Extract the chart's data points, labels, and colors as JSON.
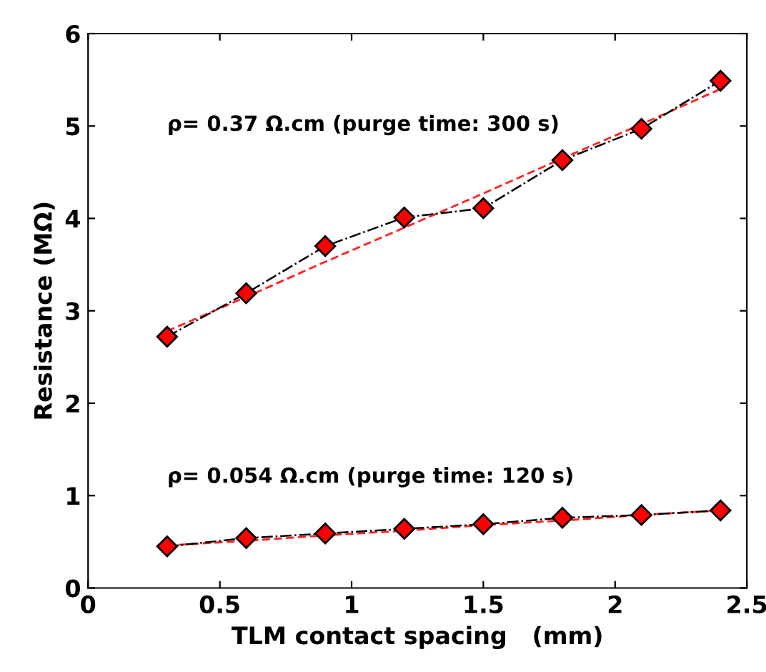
{
  "chart_data": {
    "type": "line",
    "xlabel": "TLM contact spacing   (mm)",
    "ylabel": "Resistance (MΩ)",
    "x": [
      0.3,
      0.6,
      0.9,
      1.2,
      1.5,
      1.8,
      2.1,
      2.4
    ],
    "series": [
      {
        "color": "#ff0000",
        "marker": "diamond",
        "line_style": "dashed",
        "values": [
          2.72,
          3.19,
          3.7,
          4.01,
          4.11,
          4.63,
          4.97,
          5.49
        ]
      },
      {
        "color": "#ff0000",
        "marker": "diamond",
        "line_style": "dashed",
        "values": [
          0.45,
          0.54,
          0.59,
          0.64,
          0.69,
          0.76,
          0.79,
          0.84
        ]
      },
      {
        "type": "line",
        "color": "#ff2020",
        "line_style": "dashed",
        "marker": "none",
        "values": [
          2.78,
          3.15,
          3.53,
          3.9,
          4.27,
          4.65,
          5.02,
          5.4
        ]
      },
      {
        "type": "line",
        "color": "#ff2020",
        "line_style": "dashed",
        "marker": "none",
        "values": [
          0.46,
          0.51,
          0.57,
          0.62,
          0.68,
          0.73,
          0.79,
          0.84
        ]
      }
    ],
    "annotations": [
      "ρ= 0.37 Ω.cm (purge time: 300 s)",
      "ρ= 0.054 Ω.cm (purge time: 120 s)"
    ],
    "xlim": [
      0,
      2.5
    ],
    "ylim": [
      0,
      6
    ],
    "xticks": [
      0,
      0.5,
      1,
      1.5,
      2,
      2.5
    ],
    "yticks": [
      0,
      1,
      2,
      3,
      4,
      5,
      6
    ],
    "grid": false,
    "legend": false
  }
}
